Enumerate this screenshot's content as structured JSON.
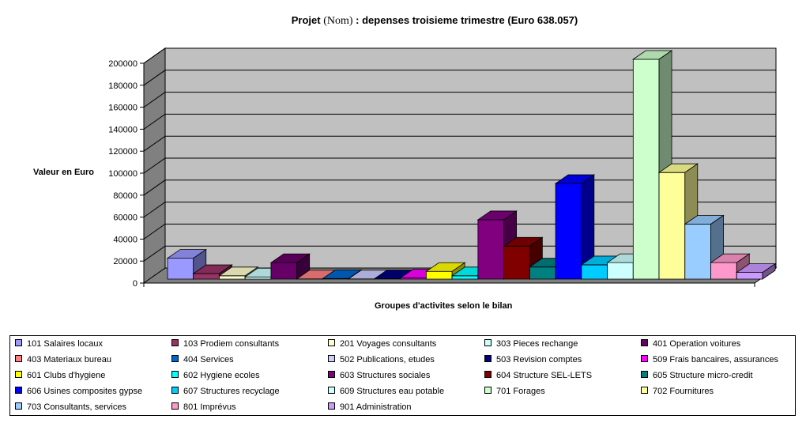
{
  "chart_data": {
    "type": "bar",
    "title": "Projet",
    "title_nom": "(Nom)",
    "title_rest": ": depenses troisieme trimestre (Euro 638.057)",
    "ylabel": "Valeur en Euro",
    "xlabel": "Groupes d'activites selon le bilan",
    "ylim": [
      0,
      200000
    ],
    "yticks": [
      "0",
      "20000",
      "40000",
      "60000",
      "80000",
      "100000",
      "120000",
      "140000",
      "160000",
      "180000",
      "200000"
    ],
    "grid": true,
    "legend_position": "bottom",
    "series": [
      {
        "name": "101 Salaires locaux",
        "value": 19000,
        "color": "#9999FF"
      },
      {
        "name": "103 Prodiem consultants",
        "value": 5000,
        "color": "#993366"
      },
      {
        "name": "201 Voyages consultants",
        "value": 3000,
        "color": "#FFFFCC"
      },
      {
        "name": "303 Pieces rechange",
        "value": 2000,
        "color": "#CCFFFF"
      },
      {
        "name": "401 Operation voitures",
        "value": 15000,
        "color": "#660066"
      },
      {
        "name": "403 Materiaux bureau",
        "value": 200,
        "color": "#FF8080"
      },
      {
        "name": "404 Services",
        "value": 500,
        "color": "#0066CC"
      },
      {
        "name": "502 Publications, etudes",
        "value": 200,
        "color": "#CCCCFF"
      },
      {
        "name": "503 Revision comptes",
        "value": 300,
        "color": "#000080"
      },
      {
        "name": "509 Frais bancaires, assurances",
        "value": 1000,
        "color": "#FF00FF"
      },
      {
        "name": "601 Clubs d'hygiene",
        "value": 7000,
        "color": "#FFFF00"
      },
      {
        "name": "602 Hygiene ecoles",
        "value": 3000,
        "color": "#00FFFF"
      },
      {
        "name": "603 Structures sociales",
        "value": 54000,
        "color": "#800080"
      },
      {
        "name": "604 Structure SEL-LETS",
        "value": 30000,
        "color": "#800000"
      },
      {
        "name": "605 Structure micro-credit",
        "value": 11000,
        "color": "#008080"
      },
      {
        "name": "606 Usines composites gypse",
        "value": 87000,
        "color": "#0000FF"
      },
      {
        "name": "607 Structures recyclage",
        "value": 13000,
        "color": "#00CCFF"
      },
      {
        "name": "609 Structures eau potable",
        "value": 15000,
        "color": "#CCFFFF"
      },
      {
        "name": "701 Forages",
        "value": 200000,
        "color": "#CCFFCC"
      },
      {
        "name": "702 Fournitures",
        "value": 97000,
        "color": "#FFFF99"
      },
      {
        "name": "703 Consultants, services",
        "value": 50000,
        "color": "#99CCFF"
      },
      {
        "name": "801 Imprévus",
        "value": 15000,
        "color": "#FF99CC"
      },
      {
        "name": "901 Administration",
        "value": 6000,
        "color": "#CC99FF"
      }
    ]
  }
}
